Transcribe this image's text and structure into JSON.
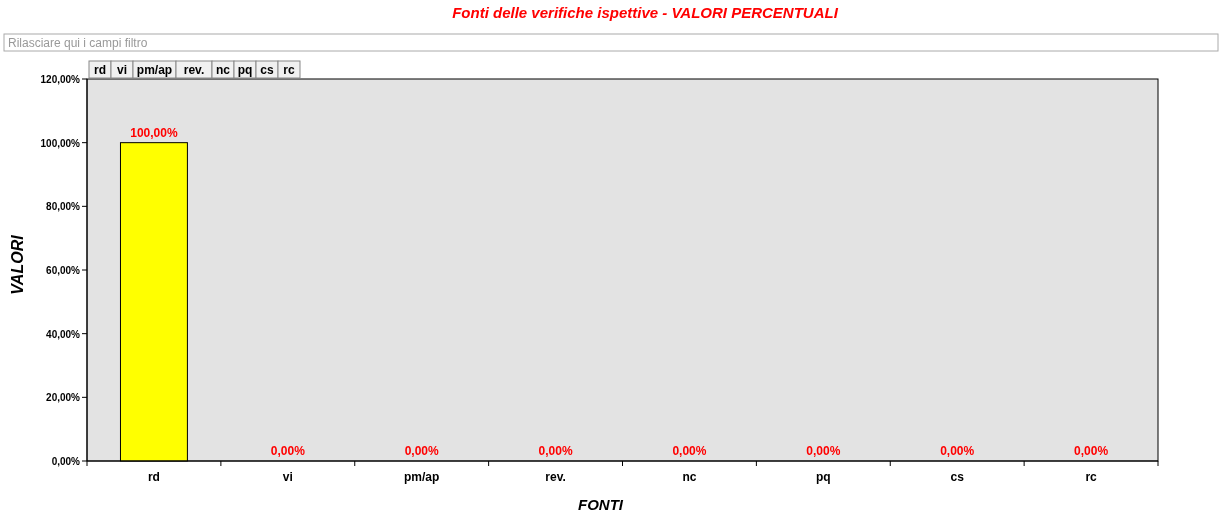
{
  "chart_data": {
    "type": "bar",
    "title": "Fonti delle verifiche ispettive - VALORI PERCENTUALI",
    "xlabel": "FONTI",
    "ylabel": "VALORI",
    "annotations": [
      "Rilasciare qui i campi filtro"
    ],
    "categories": [
      "rd",
      "vi",
      "pm/ap",
      "rev.",
      "nc",
      "pq",
      "cs",
      "rc"
    ],
    "values": [
      100,
      0,
      0,
      0,
      0,
      0,
      0,
      0
    ],
    "value_labels": [
      "100,00%",
      "0,00%",
      "0,00%",
      "0,00%",
      "0,00%",
      "0,00%",
      "0,00%",
      "0,00%"
    ],
    "color": "#ffff00",
    "ylim": [
      0,
      120
    ],
    "yticks": [
      {
        "value": 0,
        "label": "0,00%"
      },
      {
        "value": 20,
        "label": "20,00%"
      },
      {
        "value": 40,
        "label": "40,00%"
      },
      {
        "value": 60,
        "label": "60,00%"
      },
      {
        "value": 80,
        "label": "80,00%"
      },
      {
        "value": 100,
        "label": "100,00%"
      },
      {
        "value": 120,
        "label": "120,00%"
      }
    ],
    "grid": false
  }
}
